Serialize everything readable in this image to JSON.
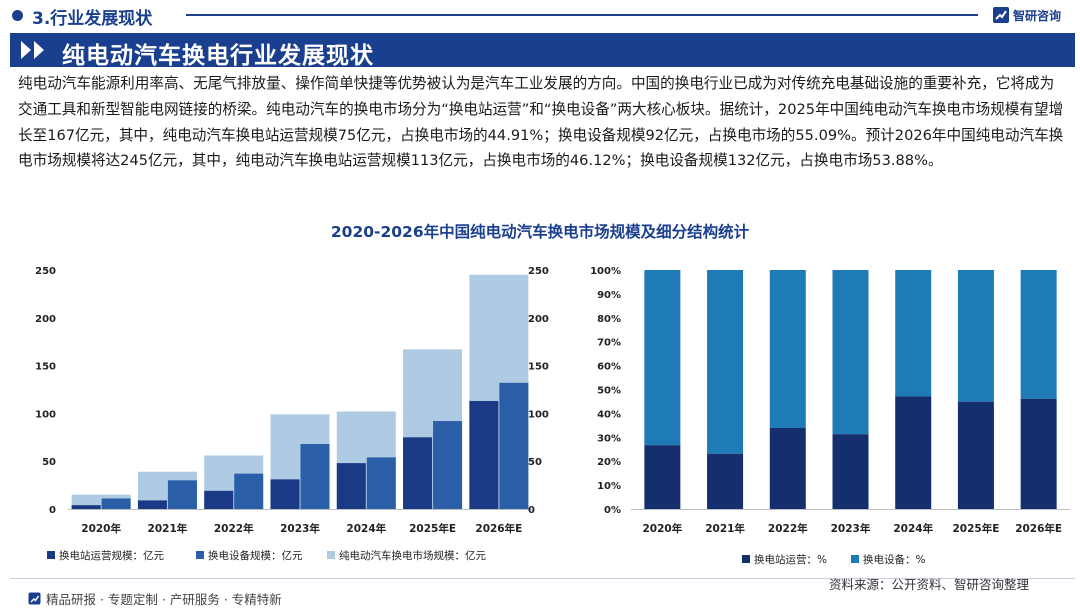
{
  "header": {
    "section_title": "3.行业发展现状",
    "brand_name": "智研咨询"
  },
  "banner": {
    "title": "纯电动汽车换电行业发展现状"
  },
  "paragraph": "纯电动汽车能源利用率高、无尾气排放量、操作简单快捷等优势被认为是汽车工业发展的方向。中国的换电行业已成为对传统充电基础设施的重要补充，它将成为交通工具和新型智能电网链接的桥梁。纯电动汽车的换电市场分为“换电站运营”和“换电设备”两大核心板块。据统计，2025年中国纯电动汽车换电市场规模有望增长至167亿元，其中，纯电动汽车换电站运营规模75亿元，占换电市场的44.91%；换电设备规模92亿元，占换电市场的55.09%。预计2026年中国纯电动汽车换电市场规模将达245亿元，其中，纯电动汽车换电站运营规模113亿元，占换电市场的46.12%；换电设备规模132亿元，占换电市场53.88%。",
  "chart_title": "2020-2026年中国纯电动汽车换电市场规模及细分结构统计",
  "colors": {
    "brand": "#1b3f8f",
    "operation": "#1b3a86",
    "equipment": "#2a5fa8",
    "total": "#aecbe3",
    "pct_operation": "#142e6e",
    "pct_equipment": "#1f7bb8"
  },
  "chart_data": [
    {
      "type": "bar",
      "categories": [
        "2020年",
        "2021年",
        "2022年",
        "2023年",
        "2024年",
        "2025年E",
        "2026年E"
      ],
      "series": [
        {
          "name": "换电站运营规模：亿元",
          "values": [
            4,
            9,
            19,
            31,
            48,
            75,
            113
          ]
        },
        {
          "name": "换电设备规模：亿元",
          "values": [
            11,
            30,
            37,
            68,
            54,
            92,
            132
          ]
        },
        {
          "name": "纯电动汽车换电市场规模：亿元",
          "values": [
            15,
            39,
            56,
            99,
            102,
            167,
            245
          ]
        }
      ],
      "ylim": [
        0,
        250
      ],
      "yticks": [
        "0",
        "50",
        "100",
        "150",
        "200",
        "250"
      ],
      "y2ticks": [
        "0",
        "50",
        "100",
        "150",
        "200",
        "250"
      ],
      "legend": [
        "换电站运营规模：亿元",
        "换电设备规模：亿元",
        "纯电动汽车换电市场规模：亿元"
      ],
      "legend_position": "bottom"
    },
    {
      "type": "bar",
      "stacked": true,
      "categories": [
        "2020年",
        "2021年",
        "2022年",
        "2023年",
        "2024年",
        "2025年E",
        "2026年E"
      ],
      "series": [
        {
          "name": "换电站运营：%",
          "values": [
            26.7,
            23.1,
            33.9,
            31.3,
            47.1,
            44.91,
            46.12
          ]
        },
        {
          "name": "换电设备：%",
          "values": [
            73.3,
            76.9,
            66.1,
            68.7,
            52.9,
            55.09,
            53.88
          ]
        }
      ],
      "ylim": [
        0,
        100
      ],
      "yticks": [
        "0%",
        "10%",
        "20%",
        "30%",
        "40%",
        "50%",
        "60%",
        "70%",
        "80%",
        "90%",
        "100%"
      ],
      "legend": [
        "换电站运营：%",
        "换电设备：%"
      ],
      "legend_position": "bottom"
    }
  ],
  "footer": {
    "left": "精品研报 · 专题定制 · 产研服务 · 专精特新",
    "source": "资料来源：公开资料、智研咨询整理"
  }
}
